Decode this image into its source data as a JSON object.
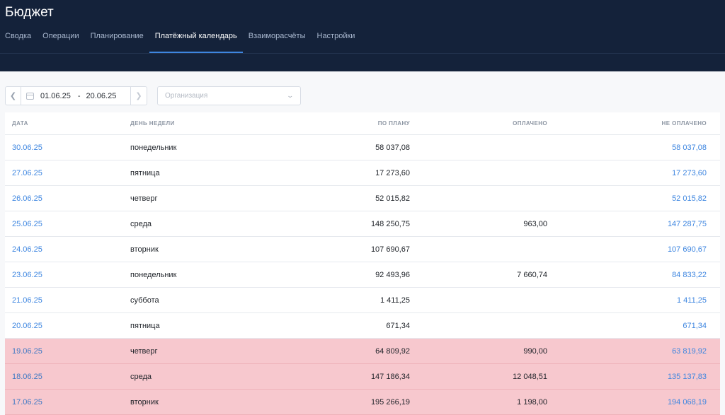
{
  "app": {
    "title": "Бюджет"
  },
  "tabs": [
    {
      "label": "Сводка",
      "active": false
    },
    {
      "label": "Операции",
      "active": false
    },
    {
      "label": "Планирование",
      "active": false
    },
    {
      "label": "Платёжный календарь",
      "active": true
    },
    {
      "label": "Взаиморасчёты",
      "active": false
    },
    {
      "label": "Настройки",
      "active": false
    }
  ],
  "filters": {
    "date_from": "01.06.25",
    "date_separator": "-",
    "date_to": "20.06.25",
    "organization_placeholder": "Организация",
    "prev_icon": "chevron-left-icon",
    "next_icon": "chevron-right-icon",
    "calendar_icon": "calendar-icon"
  },
  "table": {
    "headers": {
      "date": "ДАТА",
      "weekday": "ДЕНЬ НЕДЕЛИ",
      "planned": "ПО ПЛАНУ",
      "paid": "ОПЛАЧЕНО",
      "unpaid": "НЕ ОПЛАЧЕНО"
    },
    "rows": [
      {
        "date": "30.06.25",
        "weekday": "понедельник",
        "planned": "58 037,08",
        "paid": "",
        "unpaid": "58 037,08",
        "overdue": false
      },
      {
        "date": "27.06.25",
        "weekday": "пятница",
        "planned": "17 273,60",
        "paid": "",
        "unpaid": "17 273,60",
        "overdue": false
      },
      {
        "date": "26.06.25",
        "weekday": "четверг",
        "planned": "52 015,82",
        "paid": "",
        "unpaid": "52 015,82",
        "overdue": false
      },
      {
        "date": "25.06.25",
        "weekday": "среда",
        "planned": "148 250,75",
        "paid": "963,00",
        "unpaid": "147 287,75",
        "overdue": false
      },
      {
        "date": "24.06.25",
        "weekday": "вторник",
        "planned": "107 690,67",
        "paid": "",
        "unpaid": "107 690,67",
        "overdue": false
      },
      {
        "date": "23.06.25",
        "weekday": "понедельник",
        "planned": "92 493,96",
        "paid": "7 660,74",
        "unpaid": "84 833,22",
        "overdue": false
      },
      {
        "date": "21.06.25",
        "weekday": "суббота",
        "planned": "1 411,25",
        "paid": "",
        "unpaid": "1 411,25",
        "overdue": false
      },
      {
        "date": "20.06.25",
        "weekday": "пятница",
        "planned": "671,34",
        "paid": "",
        "unpaid": "671,34",
        "overdue": false
      },
      {
        "date": "19.06.25",
        "weekday": "четверг",
        "planned": "64 809,92",
        "paid": "990,00",
        "unpaid": "63 819,92",
        "overdue": true
      },
      {
        "date": "18.06.25",
        "weekday": "среда",
        "planned": "147 186,34",
        "paid": "12 048,51",
        "unpaid": "135 137,83",
        "overdue": true
      },
      {
        "date": "17.06.25",
        "weekday": "вторник",
        "planned": "195 266,19",
        "paid": "1 198,00",
        "unpaid": "194 068,19",
        "overdue": true
      }
    ]
  },
  "colors": {
    "header_bg": "#14223a",
    "accent": "#3e86e0",
    "overdue_row": "#f7c8ce"
  }
}
